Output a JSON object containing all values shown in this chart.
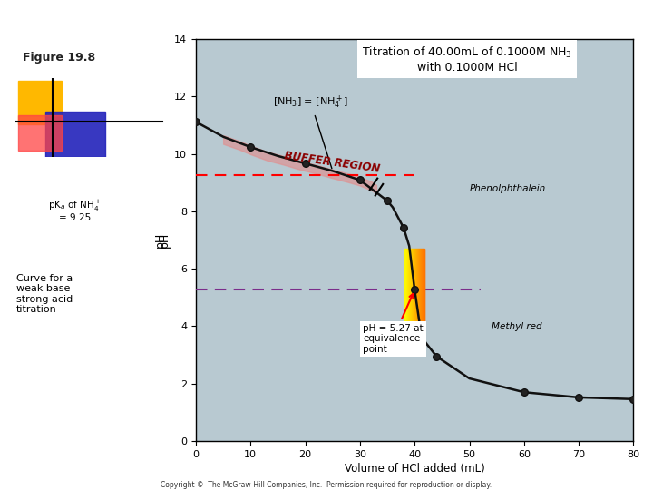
{
  "title_line1": "Titration of 40.00mL of 0.1000M NH",
  "title_line2": "with 0.1000M HCl",
  "xlabel": "Volume of HCl added (mL)",
  "ylabel": "pH",
  "xlim": [
    0,
    80
  ],
  "ylim": [
    0,
    14
  ],
  "xticks": [
    0,
    10,
    20,
    30,
    40,
    50,
    60,
    70,
    80
  ],
  "yticks": [
    0,
    2,
    4,
    6,
    8,
    10,
    12,
    14
  ],
  "bg_color": "#b8c9d1",
  "curve_color": "#111111",
  "dashed_red_y": 9.25,
  "dashed_purple_y": 5.27,
  "curve_x": [
    0,
    5,
    10,
    15,
    20,
    25,
    30,
    35,
    36,
    38,
    39,
    40,
    41,
    42,
    44,
    50,
    60,
    70,
    80
  ],
  "curve_y": [
    11.12,
    10.6,
    10.24,
    9.93,
    9.67,
    9.41,
    9.09,
    8.37,
    8.14,
    7.42,
    6.8,
    5.27,
    3.97,
    3.43,
    2.95,
    2.18,
    1.7,
    1.52,
    1.46
  ],
  "dot_x": [
    0,
    10,
    20,
    30,
    35,
    38,
    40,
    41,
    44,
    60,
    70,
    80
  ],
  "dot_y": [
    11.12,
    10.24,
    9.67,
    9.09,
    8.37,
    7.42,
    5.27,
    3.97,
    2.95,
    1.7,
    1.52,
    1.46
  ],
  "buf_bx": [
    5,
    8,
    10,
    13,
    16,
    19,
    22,
    25,
    28,
    30,
    31,
    32,
    33
  ],
  "buf_upper": [
    10.65,
    10.45,
    10.29,
    10.08,
    9.93,
    9.76,
    9.62,
    9.46,
    9.31,
    9.2,
    9.12,
    9.05,
    8.92
  ],
  "buf_lower": [
    10.35,
    10.15,
    9.99,
    9.78,
    9.63,
    9.46,
    9.32,
    9.16,
    9.01,
    8.9,
    8.82,
    8.75,
    8.62
  ]
}
